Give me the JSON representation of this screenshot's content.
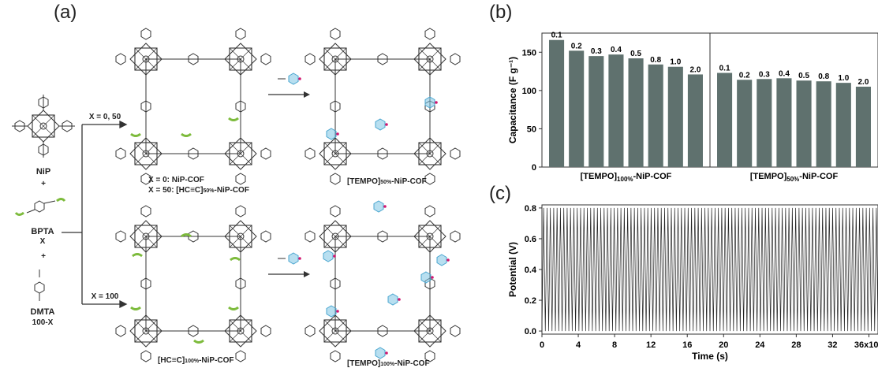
{
  "panel_labels": {
    "a": "(a)",
    "b": "(b)",
    "c": "(c)"
  },
  "scheme": {
    "nip": "NiP",
    "plus": "+",
    "bpta": "BPTA",
    "bpta_x": "X",
    "dmta": "DMTA",
    "dmta_x": "100-X",
    "arrow_top": "X = 0, 50",
    "arrow_bottom": "X = 100",
    "cof_top_line1": "X = 0: NiP-COF",
    "cof_top_line2": "X = 50: [HC≡C]",
    "cof_top_sub": "50%",
    "cof_top_tail": "-NiP-COF",
    "cof_bottom_main": "[HC≡C]",
    "cof_bottom_sub": "100%",
    "cof_bottom_tail": "-NiP-COF",
    "tempo_top_main": "[TEMPO]",
    "tempo_top_sub": "50%",
    "tempo_top_tail": "-NiP-COF",
    "tempo_bottom_main": "[TEMPO]",
    "tempo_bottom_sub": "100%",
    "tempo_bottom_tail": "-NiP-COF"
  },
  "colors": {
    "bar": "#5f716e",
    "ring_blue": "#7ec5e3",
    "alkyne_green": "#7dbb3c",
    "radical": "#d2176f"
  },
  "chart_data": [
    {
      "type": "bar",
      "ylabel": "Capacitance (F g⁻¹)",
      "ylim": [
        0,
        175
      ],
      "yticks": [
        0,
        50,
        100,
        150
      ],
      "groups": [
        {
          "name_main": "[TEMPO]",
          "name_sub": "100%",
          "name_tail": "-NiP-COF",
          "categories": [
            "0.1",
            "0.2",
            "0.3",
            "0.4",
            "0.5",
            "0.8",
            "1.0",
            "2.0"
          ],
          "values": [
            166,
            152,
            145,
            147,
            142,
            134,
            131,
            121
          ]
        },
        {
          "name_main": "[TEMPO]",
          "name_sub": "50%",
          "name_tail": "-NiP-COF",
          "categories": [
            "0.1",
            "0.2",
            "0.3",
            "0.4",
            "0.5",
            "0.8",
            "1.0",
            "2.0"
          ],
          "values": [
            123,
            114,
            115,
            116,
            113,
            112,
            110,
            105
          ]
        }
      ]
    },
    {
      "type": "line",
      "xlabel": "Time (s)",
      "ylabel": "Potential (V)",
      "xlim": [
        0,
        37000
      ],
      "ylim": [
        -0.02,
        0.82
      ],
      "xticks": [
        "0",
        "4",
        "8",
        "12",
        "16",
        "20",
        "24",
        "28",
        "32",
        "36x10³"
      ],
      "xtick_values": [
        0,
        4000,
        8000,
        12000,
        16000,
        20000,
        24000,
        28000,
        32000,
        36000
      ],
      "yticks": [
        "0.0",
        "0.2",
        "0.4",
        "0.6",
        "0.8"
      ],
      "ytick_values": [
        0.0,
        0.2,
        0.4,
        0.6,
        0.8
      ],
      "signal": {
        "shape": "triangular",
        "min": 0.0,
        "max": 0.8,
        "cycles": 100
      }
    }
  ]
}
